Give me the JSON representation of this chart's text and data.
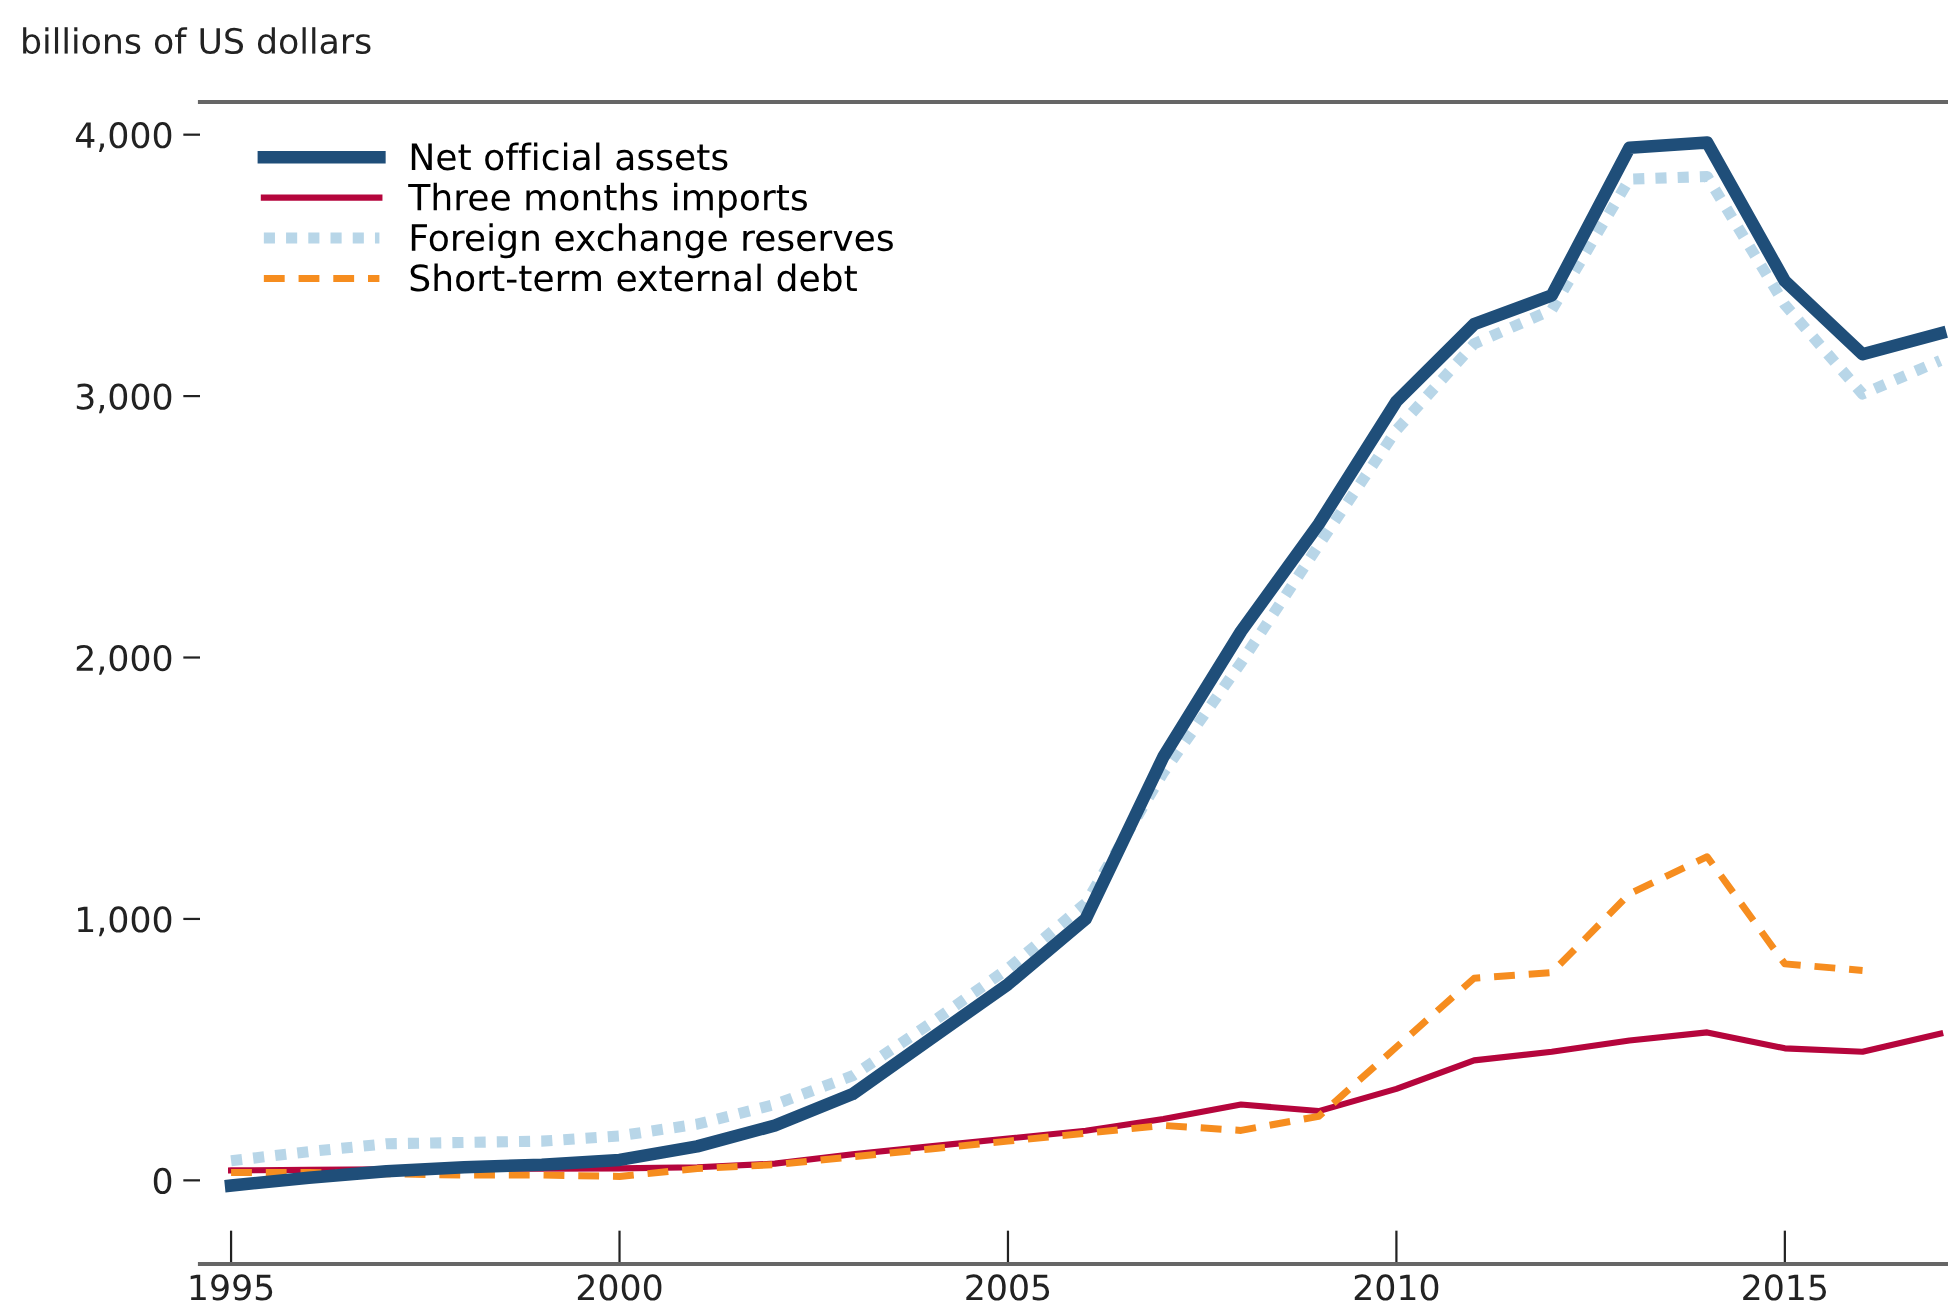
{
  "chart_data": {
    "type": "line",
    "ylabel": "billions of US dollars",
    "x": [
      1995,
      1996,
      1997,
      1998,
      1999,
      2000,
      2001,
      2002,
      2003,
      2004,
      2005,
      2006,
      2007,
      2008,
      2009,
      2010,
      2011,
      2012,
      2013,
      2014,
      2015,
      2016,
      2017
    ],
    "series": [
      {
        "name": "Net official assets",
        "color": "#1f4e79",
        "line_style": "solid",
        "values": [
          -20,
          10,
          35,
          50,
          60,
          78,
          130,
          210,
          330,
          540,
          750,
          1000,
          1620,
          2100,
          2510,
          2980,
          3275,
          3385,
          3950,
          3970,
          3440,
          3160,
          3240
        ]
      },
      {
        "name": "Three months imports",
        "color": "#b5053c",
        "line_style": "solid",
        "values": [
          38,
          40,
          42,
          44,
          45,
          46,
          50,
          64,
          100,
          130,
          160,
          190,
          235,
          290,
          265,
          350,
          459,
          492,
          535,
          566,
          505,
          492,
          561
        ]
      },
      {
        "name": "Foreign exchange reserves",
        "color": "#b8d6e8",
        "line_style": "dotted",
        "values": [
          75,
          110,
          140,
          145,
          150,
          170,
          215,
          290,
          400,
          600,
          810,
          1060,
          1560,
          1980,
          2430,
          2870,
          3200,
          3330,
          3830,
          3840,
          3350,
          3008,
          3136
        ]
      },
      {
        "name": "Short-term external debt",
        "color": "#f68d1f",
        "line_style": "dashed",
        "values": [
          30,
          30,
          25,
          20,
          20,
          15,
          45,
          60,
          90,
          120,
          150,
          180,
          210,
          191,
          245,
          510,
          773,
          795,
          1096,
          1238,
          828,
          803,
          null
        ]
      }
    ],
    "xlim": [
      1994.6,
      2017.1
    ],
    "xticks": [
      1995,
      2000,
      2005,
      2010,
      2015
    ],
    "ylim": [
      -320,
      4125
    ],
    "yticks": [
      0,
      {
        "value": 1000,
        "label": "1,000"
      },
      {
        "value": 2000,
        "label": "2,000"
      },
      {
        "value": 3000,
        "label": "3,000"
      },
      {
        "value": 4000,
        "label": "4,000"
      }
    ],
    "grid": false,
    "legend": "top left"
  }
}
